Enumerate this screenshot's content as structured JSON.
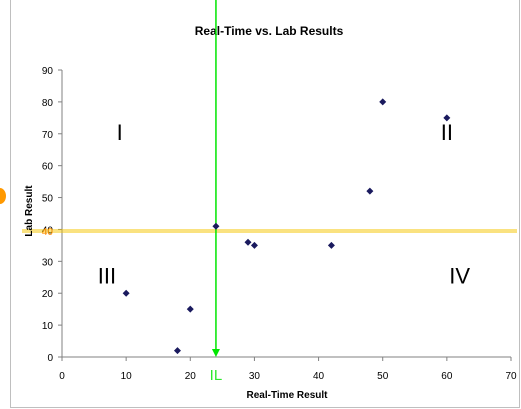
{
  "chart_data": {
    "type": "scatter",
    "title": "Real-Time vs. Lab Results",
    "xlabel": "Real-Time Result",
    "ylabel": "Lab Result",
    "xlim": [
      0,
      70
    ],
    "ylim": [
      0,
      90
    ],
    "x_ticks": [
      0,
      10,
      20,
      30,
      40,
      50,
      60,
      70
    ],
    "y_ticks": [
      0,
      10,
      20,
      30,
      40,
      50,
      60,
      70,
      80,
      90
    ],
    "grid": false,
    "series": [
      {
        "color": "#1a1a5e",
        "marker": "diamond",
        "points": [
          {
            "x": 10,
            "y": 20
          },
          {
            "x": 18,
            "y": 2
          },
          {
            "x": 20,
            "y": 15
          },
          {
            "x": 24,
            "y": 41
          },
          {
            "x": 29,
            "y": 36
          },
          {
            "x": 30,
            "y": 35
          },
          {
            "x": 42,
            "y": 35
          },
          {
            "x": 48,
            "y": 52
          },
          {
            "x": 50,
            "y": 80
          },
          {
            "x": 60,
            "y": 75
          }
        ]
      }
    ],
    "reference_lines": {
      "vertical": {
        "x": 24,
        "label": "IL",
        "color": "#00e600"
      },
      "horizontal": {
        "y": 39.5,
        "label": "40",
        "color": "#f5c500",
        "label_color": "#ff8c00"
      }
    },
    "quadrants": [
      {
        "label": "I",
        "x": 9,
        "y": 68
      },
      {
        "label": "II",
        "x": 60,
        "y": 68
      },
      {
        "label": "III",
        "x": 7,
        "y": 23
      },
      {
        "label": "IV",
        "x": 62,
        "y": 23
      }
    ]
  }
}
